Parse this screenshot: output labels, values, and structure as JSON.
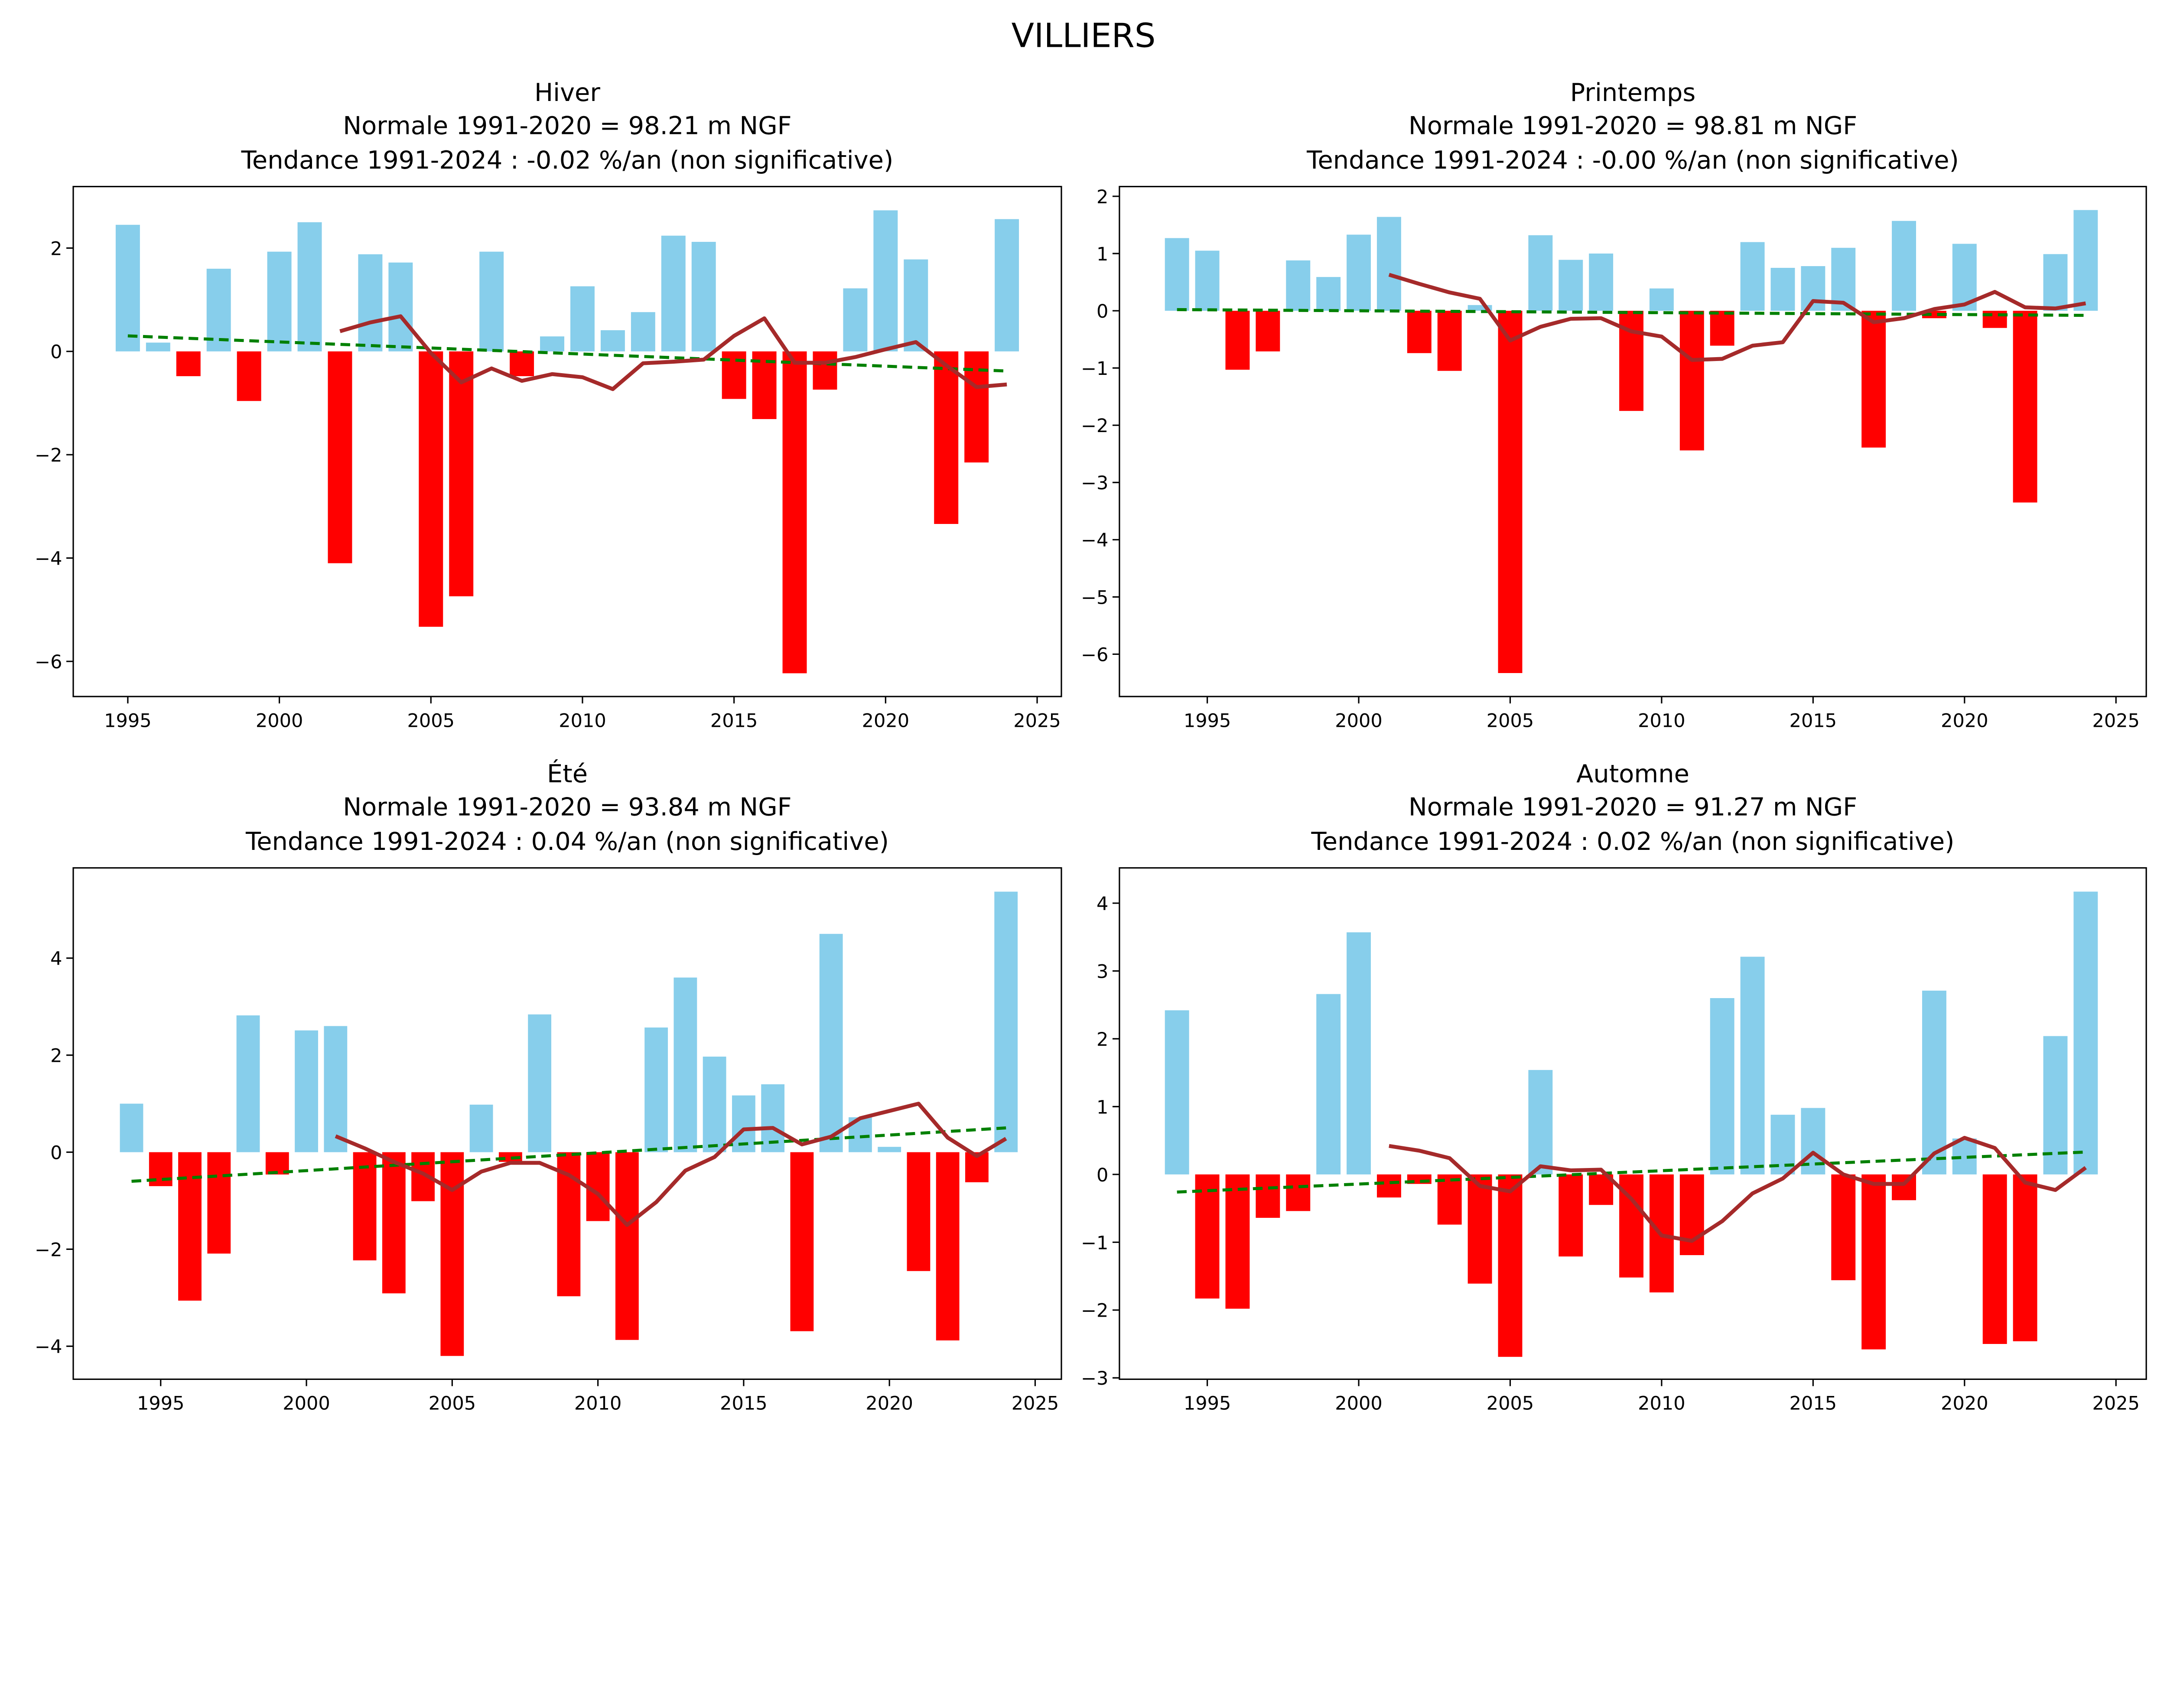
{
  "title": "VILLIERS",
  "colors": {
    "positive": "#87CEEB",
    "negative": "#FF0000",
    "moving_average": "#A52A2A",
    "trend": "#008000"
  },
  "chart_data": [
    {
      "type": "bar",
      "title_lines": [
        "Hiver",
        "Normale 1991-2020 = 98.21 m NGF",
        "Tendance 1991-2024 : -0.02 %/an (non significative)"
      ],
      "xlim": [
        1993.2,
        2025.8
      ],
      "ylim": [
        -6.68,
        3.19
      ],
      "xticks": [
        1995,
        2000,
        2005,
        2010,
        2015,
        2020,
        2025
      ],
      "yticks": [
        -6,
        -4,
        -2,
        0,
        2
      ],
      "x": [
        1995,
        1996,
        1997,
        1998,
        1999,
        2000,
        2001,
        2002,
        2003,
        2004,
        2005,
        2006,
        2007,
        2008,
        2009,
        2010,
        2011,
        2012,
        2013,
        2014,
        2015,
        2016,
        2017,
        2018,
        2019,
        2020,
        2021,
        2022,
        2023,
        2024
      ],
      "values": [
        2.45,
        0.17,
        -0.48,
        1.6,
        -0.96,
        1.93,
        2.5,
        -4.1,
        1.88,
        1.72,
        -5.33,
        -4.74,
        1.93,
        -0.48,
        0.29,
        1.26,
        0.41,
        0.76,
        2.24,
        2.12,
        -0.92,
        -1.31,
        -6.23,
        -0.74,
        1.22,
        2.73,
        1.78,
        -3.34,
        -2.15,
        2.56
      ],
      "moving_average": {
        "x_start": 2002,
        "values": [
          0.39,
          0.56,
          0.68,
          -0.03,
          -0.6,
          -0.33,
          -0.57,
          -0.44,
          -0.5,
          -0.73,
          -0.23,
          -0.2,
          -0.16,
          0.3,
          0.64,
          -0.22,
          -0.22,
          -0.11,
          0.04,
          0.18,
          -0.27,
          -0.69,
          -0.64
        ]
      },
      "trend": {
        "x": [
          1995,
          2024
        ],
        "y": [
          0.3,
          -0.38
        ]
      }
    },
    {
      "type": "bar",
      "title_lines": [
        "Printemps",
        "Normale 1991-2020 = 98.81 m NGF",
        "Tendance 1991-2024 : -0.00 %/an (non significative)"
      ],
      "xlim": [
        1992.1,
        2026.0
      ],
      "ylim": [
        -6.74,
        2.17
      ],
      "xticks": [
        1995,
        2000,
        2005,
        2010,
        2015,
        2020,
        2025
      ],
      "yticks": [
        -6,
        -5,
        -4,
        -3,
        -2,
        -1,
        0,
        1,
        2
      ],
      "x": [
        1994,
        1995,
        1996,
        1997,
        1998,
        1999,
        2000,
        2001,
        2002,
        2003,
        2004,
        2005,
        2006,
        2007,
        2008,
        2009,
        2010,
        2011,
        2012,
        2013,
        2014,
        2015,
        2016,
        2017,
        2018,
        2019,
        2020,
        2021,
        2022,
        2023,
        2024
      ],
      "values": [
        1.27,
        1.05,
        -1.03,
        -0.71,
        0.88,
        0.59,
        1.33,
        1.64,
        -0.74,
        -1.05,
        0.1,
        -6.33,
        1.32,
        0.89,
        1.0,
        -1.75,
        0.39,
        -2.44,
        -0.61,
        1.2,
        0.75,
        0.78,
        1.1,
        -2.39,
        1.57,
        -0.13,
        1.17,
        -0.3,
        -3.35,
        0.99,
        1.76
      ],
      "moving_average": {
        "x_start": 2001,
        "values": [
          0.63,
          0.47,
          0.32,
          0.21,
          -0.52,
          -0.28,
          -0.14,
          -0.13,
          -0.36,
          -0.45,
          -0.86,
          -0.84,
          -0.61,
          -0.55,
          0.17,
          0.14,
          -0.2,
          -0.13,
          0.03,
          0.11,
          0.33,
          0.06,
          0.04,
          0.13
        ]
      },
      "trend": {
        "x": [
          1994,
          2024
        ],
        "y": [
          0.02,
          -0.08
        ]
      }
    },
    {
      "type": "bar",
      "title_lines": [
        "Été",
        "Normale 1991-2020 = 93.84 m NGF",
        "Tendance 1991-2024 : 0.04 %/an (non significative)"
      ],
      "xlim": [
        1992.0,
        2025.9
      ],
      "ylim": [
        -4.68,
        5.86
      ],
      "xticks": [
        1995,
        2000,
        2005,
        2010,
        2015,
        2020,
        2025
      ],
      "yticks": [
        -4,
        -2,
        0,
        2,
        4
      ],
      "x": [
        1994,
        1995,
        1996,
        1997,
        1998,
        1999,
        2000,
        2001,
        2002,
        2003,
        2004,
        2005,
        2006,
        2007,
        2008,
        2009,
        2010,
        2011,
        2012,
        2013,
        2014,
        2015,
        2016,
        2017,
        2018,
        2019,
        2020,
        2021,
        2022,
        2023,
        2024
      ],
      "values": [
        1.0,
        -0.7,
        -3.06,
        -2.09,
        2.82,
        -0.46,
        2.51,
        2.6,
        -2.23,
        -2.91,
        -1.01,
        -4.2,
        0.98,
        -0.2,
        2.84,
        -2.97,
        -1.42,
        -3.87,
        2.57,
        3.6,
        1.97,
        1.17,
        1.4,
        -3.69,
        4.5,
        0.72,
        0.11,
        -2.45,
        -3.88,
        -0.62,
        5.37
      ],
      "moving_average": {
        "x_start": 2001,
        "values": [
          0.33,
          0.08,
          -0.2,
          -0.44,
          -0.78,
          -0.4,
          -0.22,
          -0.22,
          -0.47,
          -0.86,
          -1.5,
          -1.03,
          -0.38,
          -0.1,
          0.47,
          0.5,
          0.16,
          0.32,
          0.7,
          0.85,
          1.0,
          0.3,
          -0.08,
          0.28
        ]
      },
      "trend": {
        "x": [
          1994,
          2024
        ],
        "y": [
          -0.6,
          0.5
        ]
      }
    },
    {
      "type": "bar",
      "title_lines": [
        "Automne",
        "Normale 1991-2020 = 91.27 m NGF",
        "Tendance 1991-2024 : 0.02 %/an (non significative)"
      ],
      "xlim": [
        1992.1,
        2026.0
      ],
      "ylim": [
        -3.02,
        4.52
      ],
      "xticks": [
        1995,
        2000,
        2005,
        2010,
        2015,
        2020,
        2025
      ],
      "yticks": [
        -3,
        -2,
        -1,
        0,
        1,
        2,
        3,
        4
      ],
      "x": [
        1994,
        1995,
        1996,
        1997,
        1998,
        1999,
        2000,
        2001,
        2002,
        2003,
        2004,
        2005,
        2006,
        2007,
        2008,
        2009,
        2010,
        2011,
        2012,
        2013,
        2014,
        2015,
        2016,
        2017,
        2018,
        2019,
        2020,
        2021,
        2022,
        2023,
        2024
      ],
      "values": [
        2.42,
        -1.83,
        -1.98,
        -0.64,
        -0.54,
        2.66,
        3.57,
        -0.34,
        -0.14,
        -0.74,
        -1.61,
        -2.69,
        1.54,
        -1.21,
        -0.45,
        -1.52,
        -1.74,
        -1.19,
        2.6,
        3.21,
        0.88,
        0.98,
        -1.56,
        -2.58,
        -0.38,
        2.71,
        0.53,
        -2.5,
        -2.46,
        2.04,
        4.17
      ],
      "moving_average": {
        "x_start": 2001,
        "values": [
          0.42,
          0.35,
          0.24,
          -0.17,
          -0.25,
          0.12,
          0.06,
          0.07,
          -0.36,
          -0.9,
          -0.98,
          -0.69,
          -0.28,
          -0.06,
          0.32,
          0.0,
          -0.14,
          -0.14,
          0.31,
          0.54,
          0.39,
          -0.12,
          -0.23,
          0.1
        ]
      },
      "trend": {
        "x": [
          1994,
          2024
        ],
        "y": [
          -0.26,
          0.33
        ]
      }
    }
  ]
}
